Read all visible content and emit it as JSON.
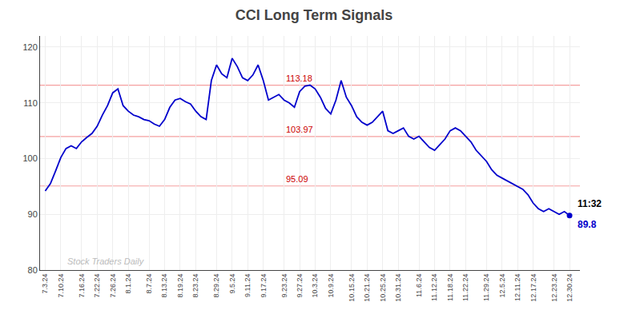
{
  "chart_data": {
    "type": "line",
    "title": "CCI Long Term Signals",
    "categories": [
      "7.3.24",
      null,
      null,
      "7.10.24",
      null,
      null,
      null,
      "7.16.24",
      null,
      null,
      "7.22.24",
      null,
      null,
      "7.26.24",
      null,
      null,
      "8.1.24",
      null,
      null,
      null,
      "8.7.24",
      null,
      null,
      "8.13.24",
      null,
      null,
      "8.19.24",
      null,
      null,
      "8.23.24",
      null,
      null,
      null,
      "8.29.24",
      null,
      null,
      "9.5.24",
      null,
      null,
      "9.11.24",
      null,
      null,
      "9.17.24",
      null,
      null,
      null,
      "9.23.24",
      null,
      null,
      "9.27.24",
      null,
      null,
      "10.3.24",
      null,
      null,
      "10.9.24",
      null,
      null,
      null,
      "10.15.24",
      null,
      null,
      "10.21.24",
      null,
      null,
      "10.25.24",
      null,
      null,
      "10.31.24",
      null,
      null,
      null,
      "11.6.24",
      null,
      null,
      "11.12.24",
      null,
      null,
      "11.18.24",
      null,
      null,
      "11.22.24",
      null,
      null,
      null,
      "11.29.24",
      null,
      null,
      "12.5.24",
      null,
      null,
      "12.11.24",
      null,
      null,
      "12.17.24",
      null,
      null,
      null,
      "12.23.24",
      null,
      null,
      "12.30.24"
    ],
    "series": [
      {
        "color": "#0000cc",
        "marker": "circle",
        "values": [
          94.2,
          95.5,
          97.8,
          100.2,
          101.8,
          102.3,
          101.8,
          103.0,
          103.8,
          104.5,
          105.8,
          107.8,
          109.5,
          111.8,
          112.5,
          109.5,
          108.5,
          107.8,
          107.5,
          107.0,
          106.8,
          106.2,
          105.8,
          107.0,
          109.2,
          110.5,
          110.8,
          110.2,
          109.8,
          108.5,
          107.5,
          107.0,
          114.0,
          116.8,
          115.2,
          114.5,
          118.0,
          116.5,
          114.5,
          114.0,
          115.0,
          116.8,
          114.0,
          110.5,
          111.0,
          111.5,
          110.5,
          110.0,
          109.2,
          112.0,
          113.0,
          113.18,
          112.5,
          111.0,
          109.0,
          108.0,
          110.5,
          114.0,
          111.0,
          109.5,
          107.5,
          106.5,
          106.0,
          106.5,
          107.5,
          108.5,
          105.0,
          104.5,
          105.0,
          105.5,
          104.0,
          103.5,
          104.0,
          103.0,
          102.0,
          101.5,
          102.5,
          103.5,
          105.0,
          105.5,
          105.0,
          104.0,
          103.0,
          101.5,
          100.5,
          99.5,
          98.0,
          97.0,
          96.5,
          96.0,
          95.5,
          95.0,
          94.5,
          93.5,
          92.0,
          91.0,
          90.5,
          91.0,
          90.5,
          90.0,
          90.5,
          89.8
        ]
      }
    ],
    "hlines": [
      {
        "value": 113.18,
        "label": "113.18",
        "color": "#f5a0a0",
        "label_color": "#cc0000"
      },
      {
        "value": 103.97,
        "label": "103.97",
        "color": "#f5a0a0",
        "label_color": "#cc0000"
      },
      {
        "value": 95.09,
        "label": "95.09",
        "color": "#f5a0a0",
        "label_color": "#cc0000"
      }
    ],
    "annotations": {
      "end_time": "11:32",
      "end_value": "89.8",
      "watermark": "Stock Traders Daily"
    },
    "ylim": [
      80,
      122
    ],
    "yticks": [
      80,
      90,
      100,
      110,
      120
    ],
    "grid": true
  }
}
